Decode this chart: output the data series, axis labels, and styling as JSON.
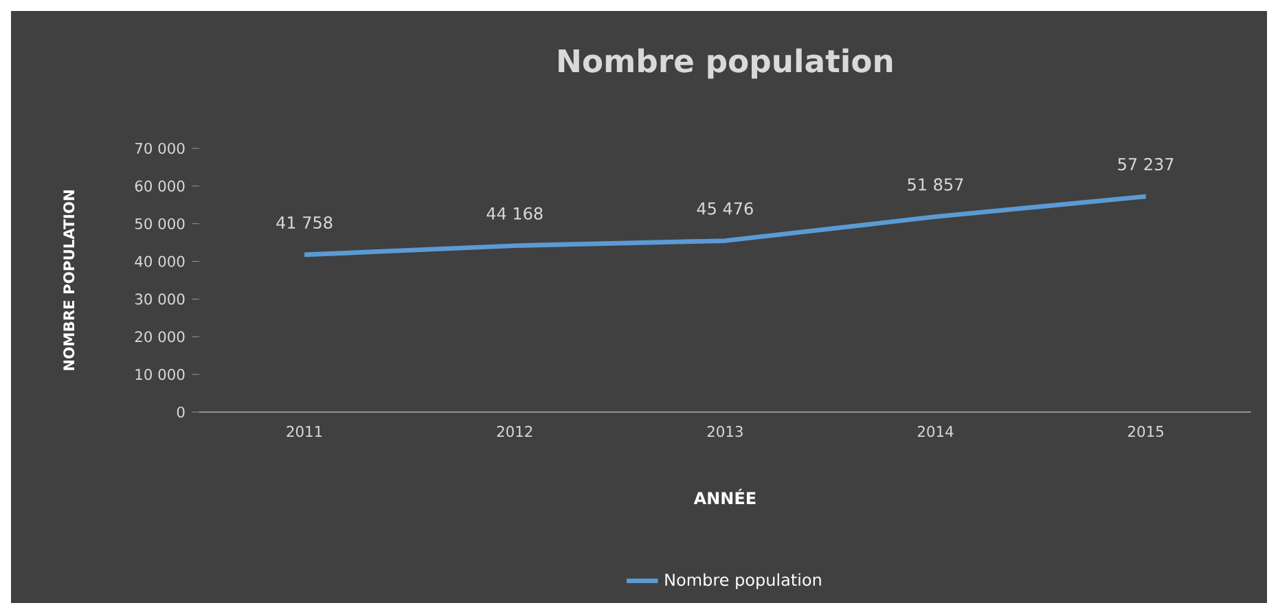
{
  "chart_data": {
    "type": "line",
    "title": "Nombre population",
    "xlabel": "ANNÉE",
    "ylabel": "NOMBRE POPULATION",
    "categories": [
      "2011",
      "2012",
      "2013",
      "2014",
      "2015"
    ],
    "series": [
      {
        "name": "Nombre population",
        "color": "#5b9bd5",
        "values": [
          41758,
          44168,
          45476,
          51857,
          57237
        ],
        "value_labels": [
          "41 758",
          "44 168",
          "45 476",
          "51 857",
          "57 237"
        ]
      }
    ],
    "ylim": [
      0,
      70000
    ],
    "yticks": [
      0,
      {
        "value": 10000,
        "label": "10 000"
      },
      {
        "value": 20000,
        "label": "20 000"
      },
      {
        "value": 30000,
        "label": "30 000"
      },
      {
        "value": 40000,
        "label": "40 000"
      },
      {
        "value": 50000,
        "label": "50 000"
      },
      {
        "value": 60000,
        "label": "60 000"
      },
      {
        "value": 70000,
        "label": "70 000"
      }
    ],
    "legend": "bottom"
  }
}
